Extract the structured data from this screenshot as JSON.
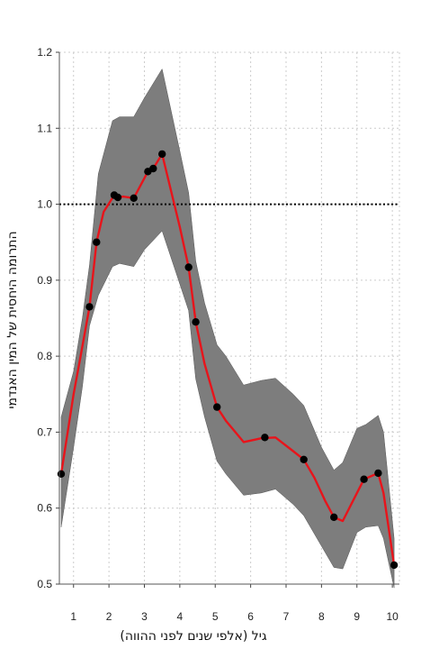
{
  "chart_data": {
    "type": "line",
    "xlabel": "גיל (אלפי שנים לפני ההווה)",
    "ylabel": "התרומה היחסית של המין האנדמי",
    "xlim": [
      0.6,
      10.2
    ],
    "ylim": [
      0.5,
      1.2
    ],
    "xticks": [
      "1",
      "2",
      "3",
      "4",
      "5",
      "6",
      "7",
      "8",
      "9",
      "10"
    ],
    "yticks": [
      "0.5",
      "0.6",
      "0.7",
      "0.8",
      "0.9",
      "1.0",
      "1.1",
      "1.2"
    ],
    "grid": true,
    "reference_line": 1.0,
    "series": [
      {
        "values_line": [
          [
            0.65,
            0.645
          ],
          [
            1.0,
            0.75
          ],
          [
            1.2,
            0.8
          ],
          [
            1.45,
            0.865
          ],
          [
            1.65,
            0.95
          ],
          [
            1.85,
            0.99
          ],
          [
            2.15,
            1.012
          ],
          [
            2.2,
            1.008
          ],
          [
            2.4,
            1.01
          ],
          [
            2.7,
            1.008
          ],
          [
            3.1,
            1.043
          ],
          [
            3.25,
            1.047
          ],
          [
            3.5,
            1.066
          ],
          [
            4.0,
            0.97
          ],
          [
            4.25,
            0.917
          ],
          [
            4.45,
            0.845
          ],
          [
            4.7,
            0.79
          ],
          [
            5.05,
            0.733
          ],
          [
            5.3,
            0.715
          ],
          [
            5.8,
            0.687
          ],
          [
            6.1,
            0.69
          ],
          [
            6.3,
            0.692
          ],
          [
            6.7,
            0.693
          ],
          [
            7.2,
            0.675
          ],
          [
            7.5,
            0.664
          ],
          [
            7.8,
            0.64
          ],
          [
            8.1,
            0.61
          ],
          [
            8.35,
            0.588
          ],
          [
            8.6,
            0.583
          ],
          [
            9.0,
            0.62
          ],
          [
            9.2,
            0.638
          ],
          [
            9.6,
            0.646
          ],
          [
            9.75,
            0.62
          ],
          [
            10.05,
            0.525
          ]
        ],
        "points": [
          [
            0.65,
            0.645
          ],
          [
            1.45,
            0.865
          ],
          [
            1.65,
            0.95
          ],
          [
            2.15,
            1.012
          ],
          [
            2.25,
            1.009
          ],
          [
            2.7,
            1.008
          ],
          [
            3.1,
            1.043
          ],
          [
            3.25,
            1.047
          ],
          [
            3.5,
            1.066
          ],
          [
            4.25,
            0.917
          ],
          [
            4.45,
            0.845
          ],
          [
            5.05,
            0.733
          ],
          [
            6.4,
            0.693
          ],
          [
            7.5,
            0.664
          ],
          [
            8.35,
            0.588
          ],
          [
            9.2,
            0.638
          ],
          [
            9.6,
            0.646
          ],
          [
            10.05,
            0.525
          ]
        ],
        "band_upper": [
          [
            0.65,
            0.72
          ],
          [
            1.0,
            0.78
          ],
          [
            1.25,
            0.85
          ],
          [
            1.45,
            0.92
          ],
          [
            1.7,
            1.04
          ],
          [
            2.1,
            1.11
          ],
          [
            2.3,
            1.115
          ],
          [
            2.7,
            1.115
          ],
          [
            3.0,
            1.14
          ],
          [
            3.5,
            1.178
          ],
          [
            4.0,
            1.07
          ],
          [
            4.25,
            1.015
          ],
          [
            4.45,
            0.925
          ],
          [
            4.7,
            0.87
          ],
          [
            5.05,
            0.815
          ],
          [
            5.3,
            0.8
          ],
          [
            5.8,
            0.762
          ],
          [
            6.3,
            0.768
          ],
          [
            6.7,
            0.771
          ],
          [
            7.2,
            0.75
          ],
          [
            7.5,
            0.735
          ],
          [
            8.0,
            0.68
          ],
          [
            8.35,
            0.65
          ],
          [
            8.6,
            0.66
          ],
          [
            9.0,
            0.705
          ],
          [
            9.25,
            0.71
          ],
          [
            9.6,
            0.722
          ],
          [
            9.75,
            0.7
          ],
          [
            10.05,
            0.56
          ]
        ],
        "band_lower": [
          [
            0.65,
            0.575
          ],
          [
            1.0,
            0.68
          ],
          [
            1.25,
            0.76
          ],
          [
            1.45,
            0.84
          ],
          [
            1.7,
            0.88
          ],
          [
            2.1,
            0.918
          ],
          [
            2.3,
            0.922
          ],
          [
            2.7,
            0.918
          ],
          [
            3.0,
            0.94
          ],
          [
            3.5,
            0.965
          ],
          [
            4.0,
            0.895
          ],
          [
            4.25,
            0.86
          ],
          [
            4.45,
            0.77
          ],
          [
            4.7,
            0.72
          ],
          [
            5.05,
            0.662
          ],
          [
            5.3,
            0.645
          ],
          [
            5.8,
            0.617
          ],
          [
            6.3,
            0.62
          ],
          [
            6.7,
            0.625
          ],
          [
            7.2,
            0.605
          ],
          [
            7.5,
            0.59
          ],
          [
            8.0,
            0.55
          ],
          [
            8.35,
            0.522
          ],
          [
            8.6,
            0.52
          ],
          [
            9.0,
            0.568
          ],
          [
            9.25,
            0.575
          ],
          [
            9.6,
            0.577
          ],
          [
            9.75,
            0.56
          ],
          [
            10.05,
            0.495
          ]
        ]
      }
    ]
  },
  "colors": {
    "line": "#e8141b",
    "band": "#7d7d7d",
    "marker": "#000000",
    "grid": "#cccccc",
    "reference": "#000000"
  }
}
